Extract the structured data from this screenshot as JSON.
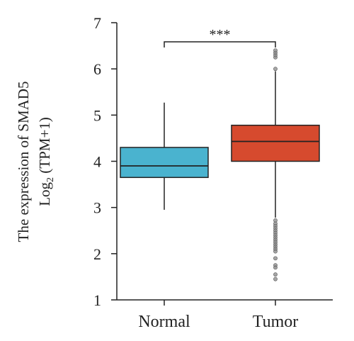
{
  "chart_data": {
    "type": "box",
    "categories": [
      "Normal",
      "Tumor"
    ],
    "ylabel_line1": "The expression of SMAD5",
    "ylabel_line2_main": "Log",
    "ylabel_line2_sub": "2",
    "ylabel_line2_rest": " (TPM+1)",
    "ylim": [
      1,
      7
    ],
    "yticks": [
      "1",
      "2",
      "3",
      "4",
      "5",
      "6",
      "7"
    ],
    "significance": "***",
    "boxes": [
      {
        "category": "Normal",
        "whisker_low": 2.95,
        "q1": 3.65,
        "median": 3.9,
        "q3": 4.3,
        "whisker_high": 5.27,
        "color": "#4AB3CF",
        "outliers": []
      },
      {
        "category": "Tumor",
        "whisker_low": 2.78,
        "q1": 4.0,
        "median": 4.43,
        "q3": 4.78,
        "whisker_high": 5.95,
        "color": "#D64A2E",
        "outliers": [
          6.0,
          6.25,
          6.3,
          6.35,
          6.4,
          2.72,
          2.65,
          2.6,
          2.55,
          2.5,
          2.45,
          2.4,
          2.35,
          2.3,
          2.25,
          2.2,
          2.15,
          2.1,
          2.05,
          1.9,
          1.75,
          1.7,
          1.55,
          1.45
        ]
      }
    ]
  }
}
